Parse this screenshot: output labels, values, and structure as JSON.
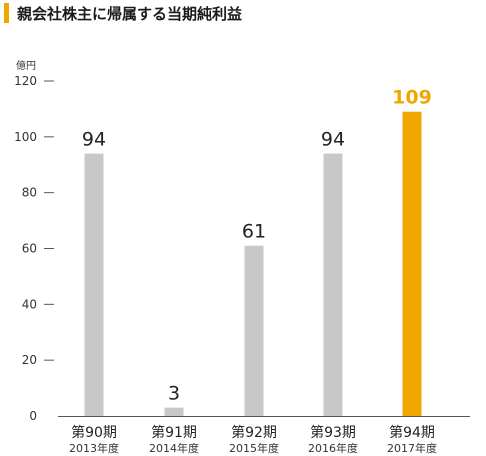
{
  "title": "親会社株主に帰属する当期純利益",
  "chart_data": {
    "type": "bar",
    "ylabel": "億円",
    "ylim": [
      0,
      120
    ],
    "yticks": [
      0,
      20,
      40,
      60,
      80,
      100,
      120
    ],
    "categories": [
      "第90期",
      "第91期",
      "第92期",
      "第93期",
      "第94期"
    ],
    "sublabels": [
      "2013年度",
      "2014年度",
      "2015年度",
      "2016年度",
      "2017年度"
    ],
    "values": [
      94,
      3,
      61,
      94,
      109
    ],
    "highlight_index": 4,
    "colors": {
      "bar": "#c8c8c8",
      "highlight": "#f0a800",
      "axis": "#555555"
    }
  }
}
